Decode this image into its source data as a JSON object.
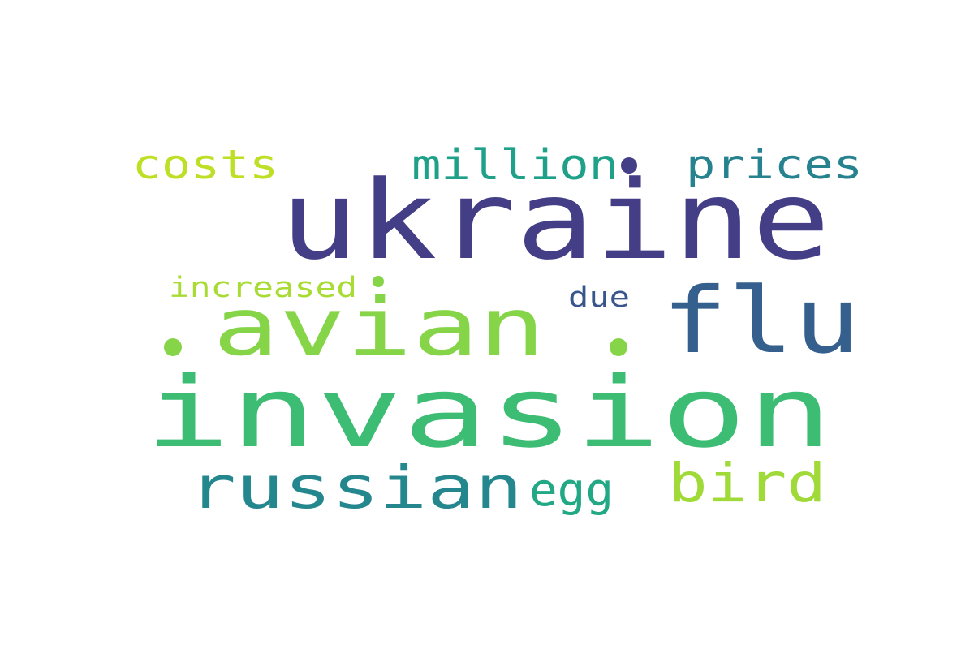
{
  "words": [
    {
      "text": "ukraine",
      "color": "#433e85"
    },
    {
      "text": "invasion",
      "color": "#3dbc74"
    },
    {
      "text": "avian",
      "color": "#86d549"
    },
    {
      "text": "flu",
      "color": "#355f8d"
    },
    {
      "text": "russian",
      "color": "#24878e"
    },
    {
      "text": "bird",
      "color": "#a0da39"
    },
    {
      "text": "egg",
      "color": "#22a884"
    },
    {
      "text": "costs",
      "color": "#bddf26"
    },
    {
      "text": "million",
      "color": "#1fa088"
    },
    {
      "text": "prices",
      "color": "#26828e"
    },
    {
      "text": "increased",
      "color": "#a8db34"
    },
    {
      "text": "due",
      "color": "#39568c"
    }
  ],
  "dot_colors": [
    "#433e85",
    "#86d549",
    "#86d549",
    "#86d549"
  ]
}
